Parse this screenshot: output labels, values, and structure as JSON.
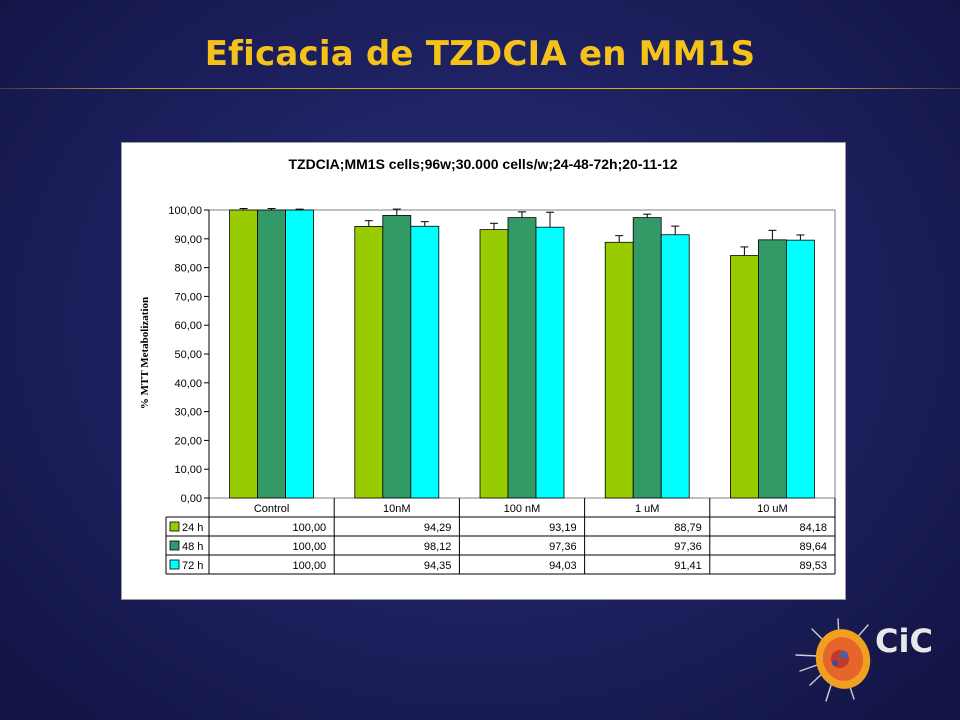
{
  "slide": {
    "title": "Eficacia de TZDCIA en MM1S",
    "title_color": "#f5c21b",
    "logo_text": "CiC"
  },
  "chart_data": {
    "type": "bar",
    "title": "TZDCIA;MM1S cells;96w;30.000 cells/w;24-48-72h;20-11-12",
    "xlabel": "",
    "ylabel": "% MTT Metabolization",
    "ylim": [
      0,
      100
    ],
    "ytick_step": 10,
    "yticks": [
      "0,00",
      "10,00",
      "20,00",
      "30,00",
      "40,00",
      "50,00",
      "60,00",
      "70,00",
      "80,00",
      "90,00",
      "100,00"
    ],
    "grid": false,
    "legend": "data-table",
    "categories": [
      "Control",
      "10nM",
      "100 nM",
      "1 uM",
      "10 uM"
    ],
    "series": [
      {
        "name": "24 h",
        "color": "#99cc00",
        "values": [
          100.0,
          94.29,
          93.19,
          88.79,
          84.18
        ],
        "labels": [
          "100,00",
          "94,29",
          "93,19",
          "88,79",
          "84,18"
        ],
        "errors": [
          0.5,
          2.0,
          2.2,
          2.3,
          3.0
        ]
      },
      {
        "name": "48 h",
        "color": "#339966",
        "values": [
          100.0,
          98.12,
          97.36,
          97.36,
          89.64
        ],
        "labels": [
          "100,00",
          "98,12",
          "97,36",
          "97,36",
          "89,64"
        ],
        "errors": [
          0.5,
          2.2,
          2.0,
          1.2,
          3.3
        ]
      },
      {
        "name": "72 h",
        "color": "#00ffff",
        "values": [
          100.0,
          94.35,
          94.03,
          91.41,
          89.53
        ],
        "labels": [
          "100,00",
          "94,35",
          "94,03",
          "91,41",
          "89,53"
        ],
        "errors": [
          0.3,
          1.6,
          5.2,
          3.0,
          1.8
        ]
      }
    ]
  }
}
